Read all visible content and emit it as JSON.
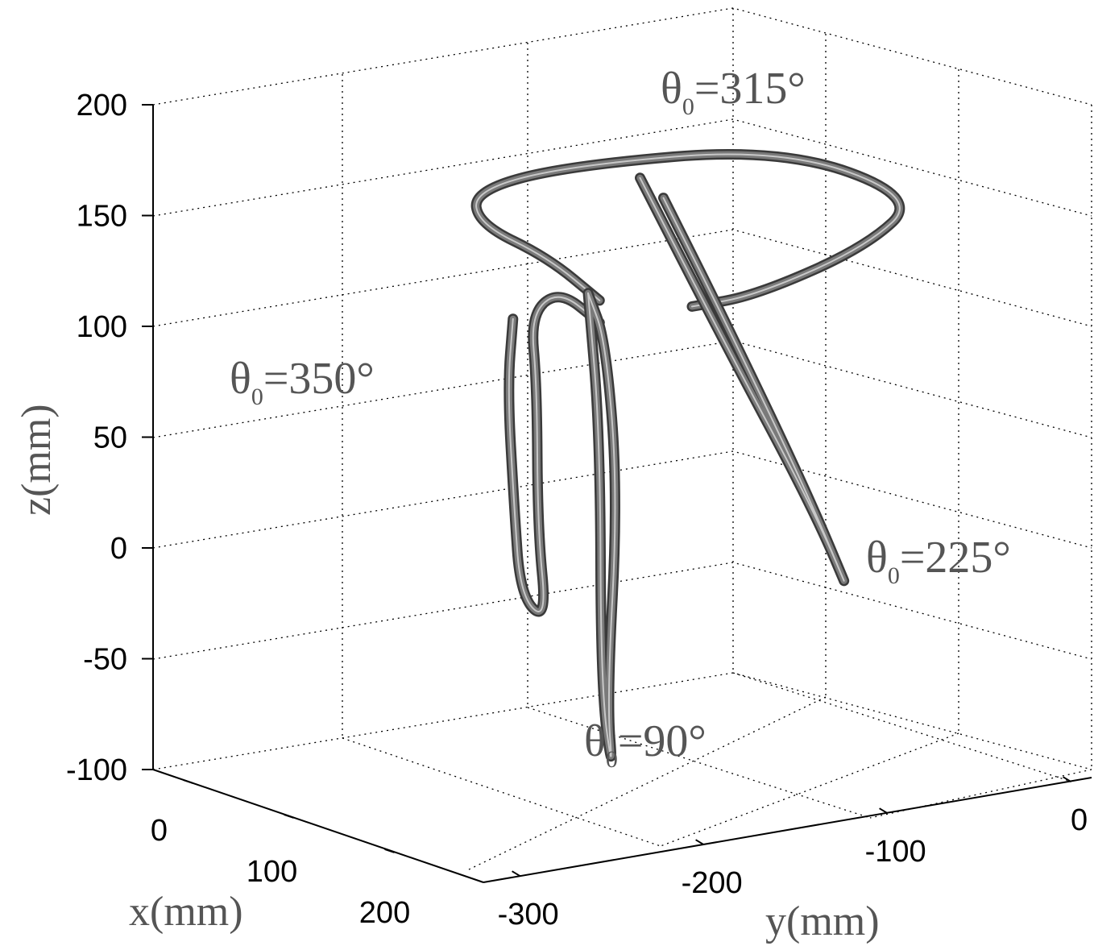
{
  "chart_data": {
    "type": "line3d",
    "xlabel": "x(mm)",
    "ylabel": "y(mm)",
    "zlabel": "z(mm)",
    "xlim": [
      -50,
      250
    ],
    "ylim": [
      -320,
      10
    ],
    "zlim": [
      -100,
      200
    ],
    "x_ticks": [
      "0",
      "100",
      "200"
    ],
    "y_ticks": [
      "-300",
      "-200",
      "-100",
      "0"
    ],
    "z_ticks": [
      "-100",
      "-50",
      "0",
      "50",
      "100",
      "150",
      "200"
    ],
    "x_tick_values": [
      0,
      100,
      200
    ],
    "y_tick_values": [
      -300,
      -200,
      -100,
      0
    ],
    "z_tick_values": [
      -100,
      -50,
      0,
      50,
      100,
      150,
      200
    ],
    "grid": true,
    "line_color": "#7a7a7a",
    "annotations": [
      {
        "base": "θ",
        "sub": "0",
        "text": "=315°"
      },
      {
        "base": "θ",
        "sub": "0",
        "text": "=350°"
      },
      {
        "base": "θ",
        "sub": "0",
        "text": "=225°"
      },
      {
        "base": "θ",
        "sub": "0",
        "text": "=90°"
      }
    ],
    "series": [
      {
        "label_index": 0,
        "points": [
          [
            0,
            -100,
            105
          ],
          [
            10,
            -70,
            110
          ],
          [
            60,
            -40,
            140
          ],
          [
            120,
            -50,
            175
          ],
          [
            150,
            -150,
            210
          ],
          [
            130,
            -260,
            205
          ],
          [
            80,
            -280,
            185
          ],
          [
            40,
            -250,
            160
          ],
          [
            10,
            -190,
            135
          ],
          [
            -5,
            -150,
            110
          ]
        ]
      },
      {
        "label_index": 1,
        "points": [
          [
            -5,
            -200,
            105
          ],
          [
            20,
            -220,
            80
          ],
          [
            70,
            -250,
            40
          ],
          [
            120,
            -280,
            10
          ],
          [
            150,
            -285,
            5
          ],
          [
            120,
            -270,
            40
          ],
          [
            60,
            -230,
            90
          ],
          [
            10,
            -200,
            110
          ],
          [
            -10,
            -170,
            115
          ],
          [
            -5,
            -150,
            100
          ]
        ]
      },
      {
        "label_index": 2,
        "points": [
          [
            0,
            -130,
            165
          ],
          [
            40,
            -110,
            100
          ],
          [
            90,
            -90,
            30
          ],
          [
            110,
            -80,
            -10
          ],
          [
            90,
            -95,
            40
          ],
          [
            50,
            -115,
            110
          ],
          [
            20,
            -130,
            160
          ]
        ]
      },
      {
        "label_index": 3,
        "points": [
          [
            0,
            -160,
            115
          ],
          [
            40,
            -180,
            60
          ],
          [
            100,
            -220,
            -40
          ],
          [
            140,
            -240,
            -70
          ],
          [
            120,
            -230,
            -40
          ],
          [
            70,
            -190,
            40
          ],
          [
            30,
            -170,
            100
          ],
          [
            0,
            -160,
            115
          ]
        ]
      }
    ]
  }
}
